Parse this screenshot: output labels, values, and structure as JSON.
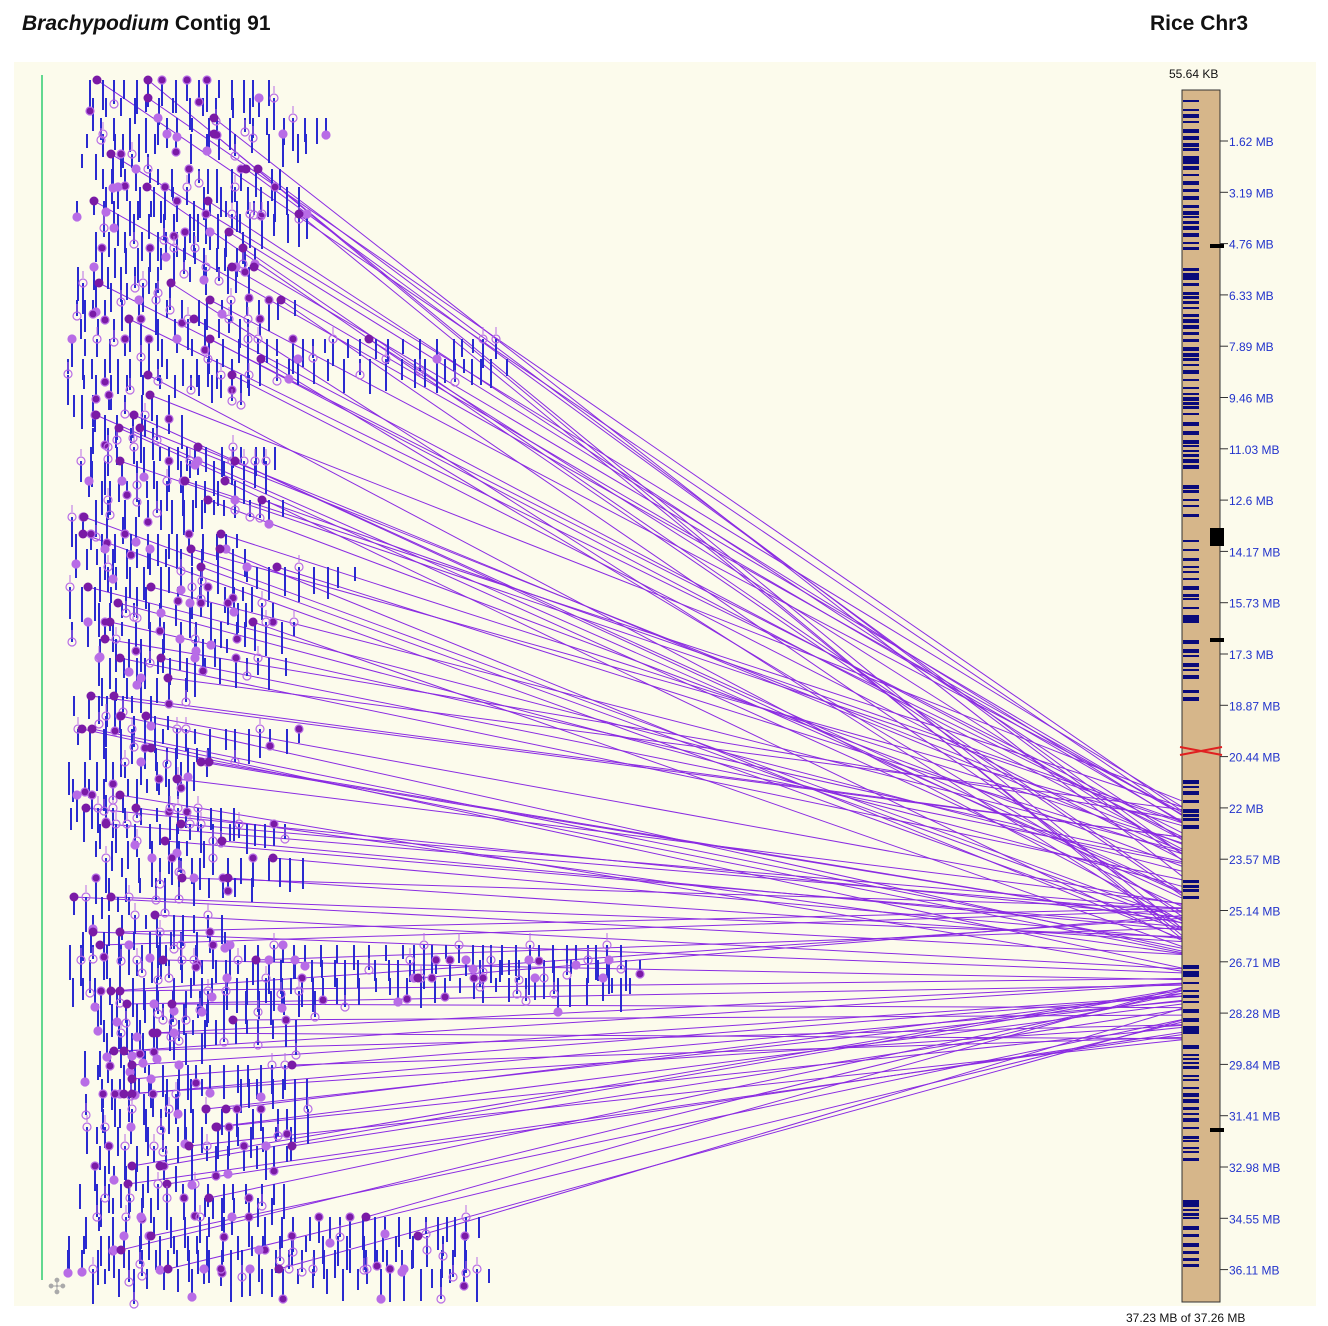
{
  "header": {
    "left_species": "Brachypodium",
    "left_rest": " Contig 91",
    "right_title": "Rice Chr3"
  },
  "chromosome": {
    "top_label": "55.64 KB",
    "footer_label": "37.23 MB of 37.26 MB",
    "ticks": [
      "1.62 MB",
      "3.19 MB",
      "4.76 MB",
      "6.33 MB",
      "7.89 MB",
      "9.46 MB",
      "11.03 MB",
      "12.6 MB",
      "14.17 MB",
      "15.73 MB",
      "17.3 MB",
      "18.87 MB",
      "20.44 MB",
      "22 MB",
      "23.57 MB",
      "25.14 MB",
      "26.71 MB",
      "28.28 MB",
      "29.84 MB",
      "31.41 MB",
      "32.98 MB",
      "34.55 MB",
      "36.11 MB"
    ],
    "colors": {
      "band": "#d6b68a",
      "gene": "#0a0a7a",
      "tick_text": "#2233cc",
      "centromere": "#e02020"
    }
  },
  "features": {
    "colors": {
      "link": "#8a2be2",
      "marker_dark": "#7a1aa6",
      "marker_light": "#b86ce6",
      "stick": "#2a2ad0",
      "axis": "#2ecc71",
      "panel_bg": "#fcfbec"
    }
  },
  "icons": {
    "move_handle": "move-icon"
  }
}
